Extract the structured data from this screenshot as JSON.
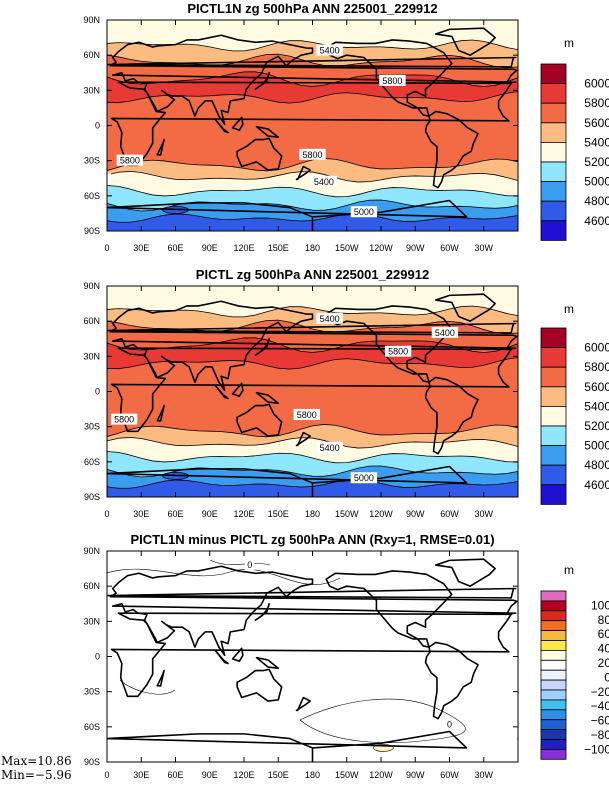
{
  "panels": [
    {
      "title": "PICTL1N zg 500hPa ANN 225001_229912",
      "kind": "field",
      "contour_labels": [
        "5400",
        "5800",
        "5800",
        "5800",
        "5400",
        "5400",
        "5000"
      ]
    },
    {
      "title": "PICTL zg 500hPa ANN 225001_229912",
      "kind": "field",
      "contour_labels": [
        "5400",
        "5400",
        "5800",
        "5800",
        "5800",
        "5400",
        "5000"
      ]
    },
    {
      "title": "PICTL1N minus PICTL zg 500hPa ANN (Rxy=1, RMSE=0.01)",
      "kind": "diff",
      "contour_labels": [
        "0",
        "0"
      ]
    }
  ],
  "lat_ticks": [
    "90N",
    "60N",
    "30N",
    "0",
    "30S",
    "60S",
    "90S"
  ],
  "lon_ticks": [
    "0",
    "30E",
    "60E",
    "90E",
    "120E",
    "150E",
    "180",
    "150W",
    "120W",
    "90W",
    "60W",
    "30W"
  ],
  "field_colorbar": {
    "units": "m",
    "labels": [
      "6000",
      "5800",
      "5600",
      "5400",
      "5200",
      "5000",
      "4800",
      "4600"
    ],
    "colors": [
      "#a50026",
      "#e83a35",
      "#f36b45",
      "#fcbb80",
      "#fffbe3",
      "#8fe6ff",
      "#3a9df0",
      "#2f5be8",
      "#1f10d4"
    ]
  },
  "diff_colorbar": {
    "units": "m",
    "labels": [
      "100",
      "80",
      "60",
      "40",
      "20",
      "0",
      "−20",
      "−40",
      "−60",
      "−80",
      "−100"
    ],
    "colors": [
      "#e06cc0",
      "#b4001e",
      "#d82a1e",
      "#f07020",
      "#f5b840",
      "#fbe84a",
      "#fffde0",
      "#ffffff",
      "#eef2ff",
      "#c8d6ff",
      "#9fd0ff",
      "#40c0f0",
      "#2c90e8",
      "#2060d0",
      "#1838b0",
      "#2020c0",
      "#8a2fd8"
    ]
  },
  "stats": {
    "max": "Max=10.86",
    "min": "Min=−5.96"
  }
}
